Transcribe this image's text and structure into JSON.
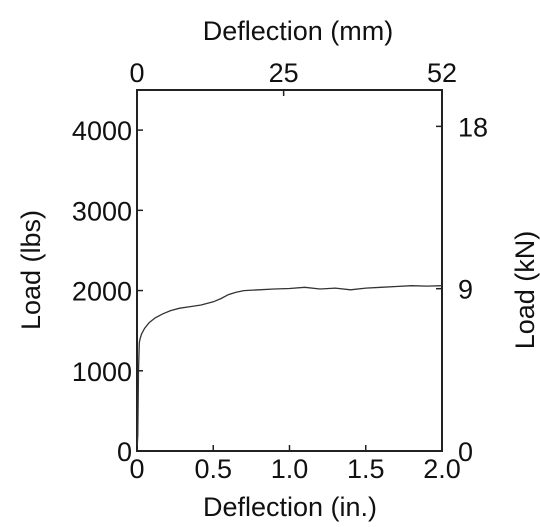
{
  "chart_data": {
    "type": "line",
    "title": "",
    "xlabel": "Deflection (in.)",
    "ylabel": "Load (lbs)",
    "x2label": "Deflection (mm)",
    "y2label": "Load (kN)",
    "xlim": [
      0,
      2.0
    ],
    "ylim": [
      0,
      4500
    ],
    "x_ticks": [
      "0",
      "0.5",
      "1.0",
      "1.5",
      "2.0"
    ],
    "y_ticks": [
      "0",
      "1000",
      "2000",
      "3000",
      "4000"
    ],
    "x2_ticks": [
      "0",
      "25",
      "52"
    ],
    "y2_ticks": [
      "0",
      "9",
      "18"
    ],
    "grid": false,
    "line_color": "#333333",
    "series": [
      {
        "x": [
          0,
          0.005,
          0.01,
          0.015,
          0.02,
          0.03,
          0.05,
          0.08,
          0.12,
          0.17,
          0.22,
          0.28,
          0.35,
          0.42,
          0.5,
          0.55,
          0.6,
          0.65,
          0.7,
          0.8,
          0.9,
          1.0,
          1.1,
          1.2,
          1.3,
          1.4,
          1.5,
          1.6,
          1.7,
          1.8,
          1.9,
          2.0
        ],
        "y": [
          0,
          200,
          1000,
          1350,
          1400,
          1460,
          1530,
          1600,
          1660,
          1710,
          1750,
          1780,
          1800,
          1820,
          1860,
          1900,
          1950,
          1980,
          2000,
          2010,
          2020,
          2025,
          2040,
          2020,
          2030,
          2010,
          2030,
          2040,
          2050,
          2060,
          2055,
          2060
        ]
      }
    ]
  }
}
